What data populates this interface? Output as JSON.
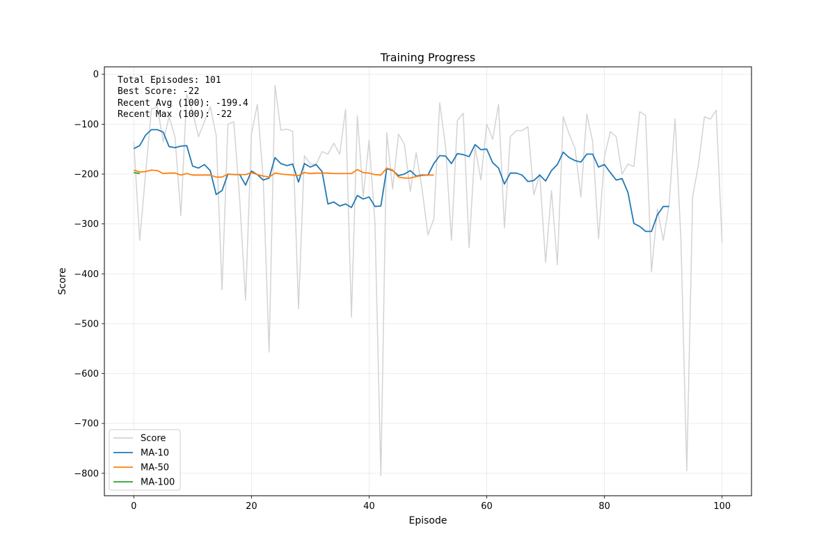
{
  "chart_data": {
    "type": "line",
    "title": "Training Progress",
    "xlabel": "Episode",
    "ylabel": "Score",
    "xlim": [
      -5,
      105
    ],
    "ylim": [
      -845,
      15
    ],
    "xticks": [
      0,
      20,
      40,
      60,
      80,
      100
    ],
    "yticks": [
      0,
      -100,
      -200,
      -300,
      -400,
      -500,
      -600,
      -700,
      -800
    ],
    "grid": true,
    "legend_position": "lower-left",
    "stats_text": [
      "Total Episodes: 101",
      "Best Score: -22",
      "Recent Avg (100): -199.4",
      "Recent Max (100): -22"
    ],
    "series": [
      {
        "name": "Score",
        "color": "#d3d3d3",
        "x_start": 0,
        "values": [
          -135,
          -333,
          -200,
          -70,
          -65,
          -135,
          -85,
          -125,
          -283,
          -40,
          -75,
          -125,
          -95,
          -65,
          -122,
          -432,
          -100,
          -95,
          -250,
          -453,
          -120,
          -60,
          -210,
          -557,
          -22,
          -112,
          -110,
          -114,
          -470,
          -163,
          -180,
          -180,
          -155,
          -160,
          -138,
          -160,
          -70,
          -487,
          -83,
          -245,
          -132,
          -300,
          -805,
          -117,
          -230,
          -120,
          -140,
          -235,
          -157,
          -230,
          -322,
          -290,
          -57,
          -145,
          -333,
          -93,
          -78,
          -348,
          -145,
          -212,
          -100,
          -130,
          -60,
          -308,
          -125,
          -113,
          -113,
          -105,
          -242,
          -200,
          -377,
          -233,
          -382,
          -85,
          -120,
          -148,
          -246,
          -80,
          -135,
          -330,
          -165,
          -115,
          -125,
          -200,
          -180,
          -185,
          -75,
          -82,
          -396,
          -270,
          -333,
          -260,
          -89,
          -330,
          -795,
          -245,
          -180,
          -85,
          -90,
          -72,
          -338
        ]
      },
      {
        "name": "MA-10",
        "color": "#1f77b4",
        "x_start": 0,
        "values": [
          -149,
          -143,
          -122,
          -111,
          -111,
          -116,
          -145,
          -147,
          -144,
          -143,
          -184,
          -188,
          -181,
          -193,
          -241,
          -233,
          -200,
          -201,
          -201,
          -222,
          -194,
          -201,
          -212,
          -208,
          -167,
          -179,
          -183,
          -180,
          -216,
          -179,
          -186,
          -181,
          -195,
          -260,
          -256,
          -264,
          -260,
          -267,
          -243,
          -250,
          -246,
          -265,
          -264,
          -189,
          -193,
          -203,
          -200,
          -193,
          -204,
          -202,
          -202,
          -179,
          -163,
          -164,
          -179,
          -159,
          -161,
          -165,
          -141,
          -151,
          -150,
          -177,
          -188,
          -220,
          -198,
          -198,
          -202,
          -215,
          -213,
          -202,
          -214,
          -193,
          -181,
          -156,
          -167,
          -173,
          -176,
          -160,
          -160,
          -186,
          -181,
          -197,
          -212,
          -209,
          -237,
          -299,
          -305,
          -315,
          -315,
          -282,
          -265,
          -265
        ]
      },
      {
        "name": "MA-50",
        "color": "#ff7f0e",
        "x_start": 0,
        "values": [
          -192,
          -196,
          -195,
          -192,
          -193,
          -199,
          -198,
          -198,
          -202,
          -199,
          -202,
          -202,
          -202,
          -202,
          -206,
          -206,
          -200,
          -201,
          -201,
          -201,
          -197,
          -201,
          -204,
          -206,
          -198,
          -200,
          -201,
          -202,
          -203,
          -197,
          -199,
          -198,
          -198,
          -198,
          -199,
          -199,
          -199,
          -199,
          -191,
          -197,
          -198,
          -201,
          -202,
          -188,
          -192,
          -206,
          -208,
          -208,
          -205,
          -203,
          -202,
          -202
        ]
      },
      {
        "name": "MA-100",
        "color": "#2ca02c",
        "x_start": 0,
        "values": [
          -197,
          -199
        ]
      }
    ]
  }
}
